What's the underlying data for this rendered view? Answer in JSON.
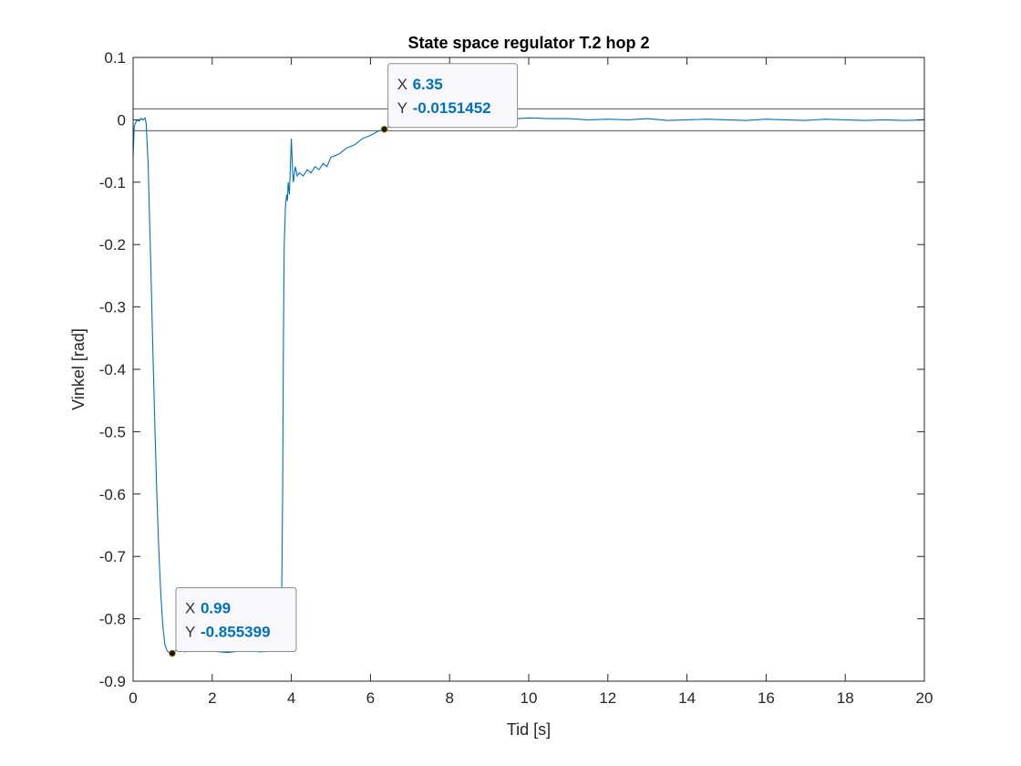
{
  "chart_data": {
    "type": "line",
    "title": "State space regulator T.2 hop 2",
    "xlabel": "Tid [s]",
    "ylabel": "Vinkel [rad]",
    "xlim": [
      0,
      20
    ],
    "ylim": [
      -0.9,
      0.1
    ],
    "xticks": [
      0,
      2,
      4,
      6,
      8,
      10,
      12,
      14,
      16,
      18,
      20
    ],
    "xtick_labels": [
      "0",
      "2",
      "4",
      "6",
      "8",
      "10",
      "12",
      "14",
      "16",
      "18",
      "20"
    ],
    "yticks": [
      0.1,
      0,
      -0.1,
      -0.2,
      -0.3,
      -0.4,
      -0.5,
      -0.6,
      -0.7,
      -0.8,
      -0.9
    ],
    "ytick_labels": [
      "0.1",
      "0",
      "-0.1",
      "-0.2",
      "-0.3",
      "-0.4",
      "-0.5",
      "-0.6",
      "-0.7",
      "-0.8",
      "-0.9"
    ],
    "grid": false,
    "box": true,
    "line_color": "#0072BD",
    "reference_lines": [
      0.0175,
      -0.0175
    ],
    "series": [
      {
        "x": [
          0,
          0.03,
          0.06,
          0.1,
          0.15,
          0.2,
          0.25,
          0.3,
          0.33,
          0.38,
          0.45,
          0.5,
          0.55,
          0.6,
          0.65,
          0.7,
          0.75,
          0.8,
          0.85,
          0.9,
          0.95,
          0.99,
          1.1,
          1.3,
          1.6,
          2.0,
          2.4,
          2.8,
          3.2,
          3.5,
          3.7,
          3.75,
          3.78,
          3.8,
          3.82,
          3.85,
          3.88,
          3.9,
          3.92,
          3.95,
          4.0,
          4.03,
          4.05,
          4.1,
          4.15,
          4.2,
          4.3,
          4.4,
          4.5,
          4.6,
          4.7,
          4.8,
          4.9,
          5.0,
          5.2,
          5.4,
          5.6,
          5.8,
          6.0,
          6.2,
          6.35,
          6.5,
          6.7,
          6.9,
          7.2,
          7.5,
          8.0,
          8.5,
          9.0,
          9.5,
          10.0,
          10.5,
          11.0,
          11.5,
          12.0,
          12.5,
          13.0,
          13.5,
          14.0,
          14.5,
          15.0,
          15.5,
          16.0,
          16.5,
          17.0,
          17.5,
          18.0,
          18.5,
          19.0,
          19.5,
          20.0
        ],
        "y": [
          -0.06,
          -0.01,
          -0.005,
          0.0,
          -0.002,
          0.002,
          0.0,
          0.003,
          -0.005,
          -0.07,
          -0.24,
          -0.37,
          -0.49,
          -0.6,
          -0.69,
          -0.76,
          -0.81,
          -0.84,
          -0.85,
          -0.854,
          -0.855,
          -0.855,
          -0.85,
          -0.853,
          -0.85,
          -0.852,
          -0.854,
          -0.851,
          -0.853,
          -0.852,
          -0.852,
          -0.8,
          -0.6,
          -0.35,
          -0.2,
          -0.14,
          -0.12,
          -0.13,
          -0.1,
          -0.12,
          -0.03,
          -0.08,
          -0.1,
          -0.075,
          -0.09,
          -0.085,
          -0.09,
          -0.08,
          -0.085,
          -0.075,
          -0.08,
          -0.07,
          -0.075,
          -0.06,
          -0.055,
          -0.045,
          -0.04,
          -0.03,
          -0.025,
          -0.018,
          -0.0151452,
          -0.01,
          -0.005,
          -0.002,
          0.002,
          0.0,
          0.005,
          0.003,
          0.004,
          0.001,
          0.003,
          0.002,
          0.002,
          0.0,
          0.001,
          0.0,
          0.002,
          -0.001,
          0.0,
          0.001,
          0.0,
          -0.001,
          0.001,
          0.0,
          -0.001,
          0.001,
          0.0,
          -0.001,
          0.0,
          -0.001,
          0.0
        ]
      }
    ],
    "datatips": [
      {
        "x": 0.99,
        "y": -0.855399,
        "x_label": "X",
        "y_label": "Y",
        "x_text": "0.99",
        "y_text": "-0.855399",
        "side": "above-right"
      },
      {
        "x": 6.35,
        "y": -0.0151452,
        "x_label": "X",
        "y_label": "Y",
        "x_text": "6.35",
        "y_text": "-0.0151452",
        "side": "above-right"
      }
    ],
    "datatip_value_color": "#0072BD"
  }
}
